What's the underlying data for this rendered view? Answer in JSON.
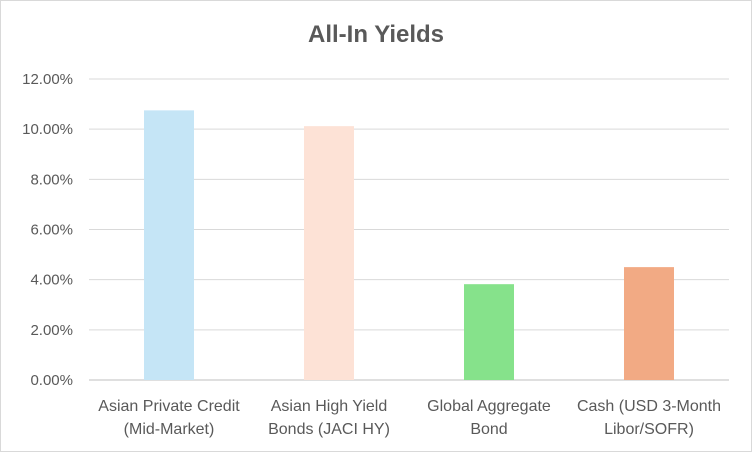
{
  "chart_data": {
    "type": "bar",
    "title": "All-In Yields",
    "categories": [
      [
        "Asian Private Credit",
        "(Mid-Market)"
      ],
      [
        "Asian High Yield",
        "Bonds (JACI HY)"
      ],
      [
        "Global Aggregate",
        "Bond"
      ],
      [
        "Cash (USD 3-Month",
        "Libor/SOFR)"
      ]
    ],
    "values": [
      10.75,
      10.12,
      3.82,
      4.5
    ],
    "bar_colors": [
      "#c5e5f6",
      "#fde2d6",
      "#86e28b",
      "#f2aa84"
    ],
    "yticks": [
      "0.00%",
      "2.00%",
      "4.00%",
      "6.00%",
      "8.00%",
      "10.00%",
      "12.00%"
    ],
    "ylim": [
      0,
      12
    ],
    "grid": true,
    "legend": "none"
  }
}
